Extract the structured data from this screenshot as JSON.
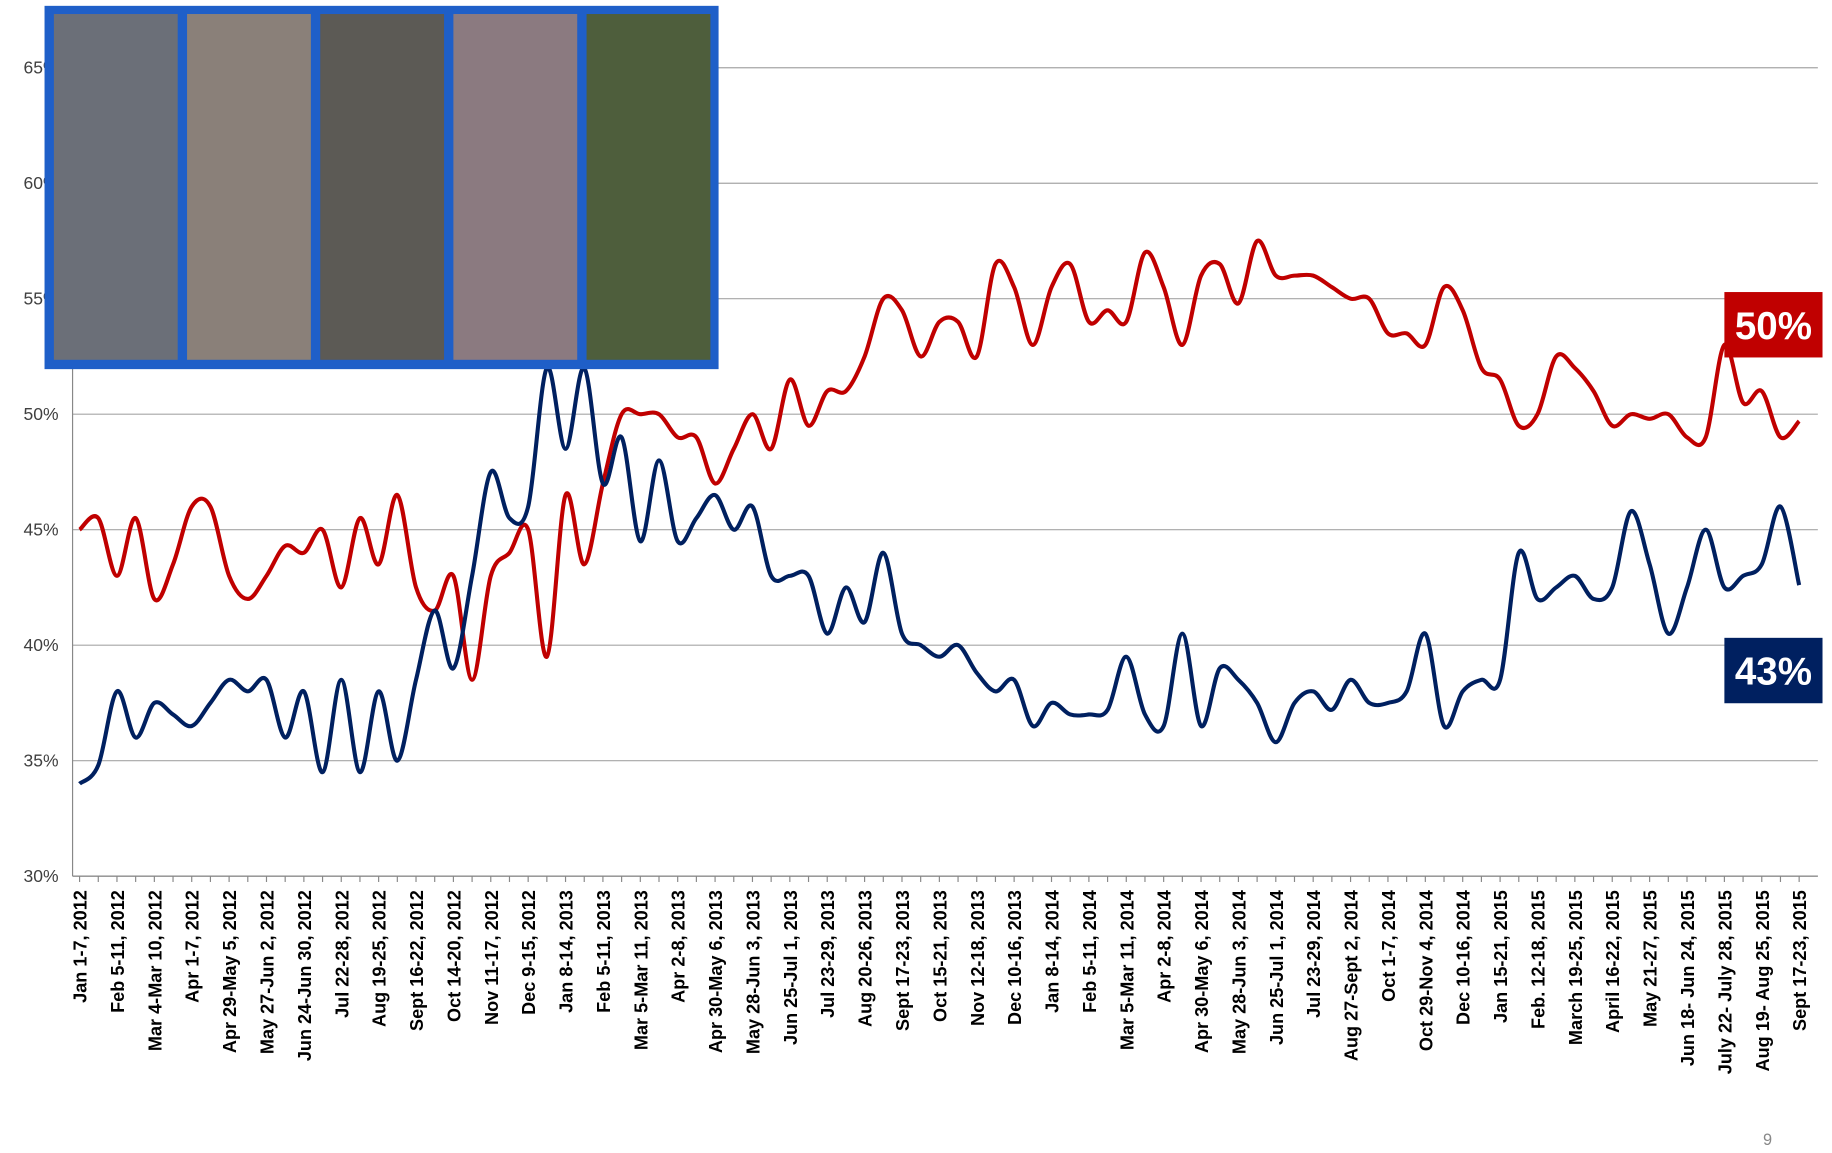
{
  "chart_data": {
    "type": "line",
    "categories": [
      "Jan 1-7, 2012",
      null,
      "Feb 5-11, 2012",
      null,
      "Mar 4-Mar 10, 2012",
      null,
      "Apr 1-7, 2012",
      null,
      "Apr 29-May 5, 2012",
      null,
      "May 27-Jun 2, 2012",
      null,
      "Jun 24-Jun 30, 2012",
      null,
      "Jul 22-28, 2012",
      null,
      "Aug 19-25, 2012",
      null,
      "Sept 16-22, 2012",
      null,
      "Oct 14-20, 2012",
      null,
      "Nov 11-17, 2012",
      null,
      "Dec 9-15, 2012",
      null,
      "Jan 8-14, 2013",
      null,
      "Feb 5-11, 2013",
      null,
      "Mar 5-Mar 11, 2013",
      null,
      "Apr 2-8, 2013",
      null,
      "Apr 30-May 6, 2013",
      null,
      "May 28-Jun 3, 2013",
      null,
      "Jun 25-Jul 1, 2013",
      null,
      "Jul 23-29, 2013",
      null,
      "Aug 20-26, 2013",
      null,
      "Sept 17-23, 2013",
      null,
      "Oct 15-21, 2013",
      null,
      "Nov 12-18, 2013",
      null,
      "Dec 10-16, 2013",
      null,
      "Jan 8-14, 2014",
      null,
      "Feb 5-11, 2014",
      null,
      "Mar 5-Mar 11, 2014",
      null,
      "Apr 2-8, 2014",
      null,
      "Apr 30-May 6, 2014",
      null,
      "May 28-Jun 3, 2014",
      null,
      "Jun 25-Jul 1, 2014",
      null,
      "Jul 23-29, 2014",
      null,
      "Aug 27-Sept 2, 2014",
      null,
      "Oct 1-7, 2014",
      null,
      "Oct 29-Nov 4, 2014",
      null,
      "Dec 10-16, 2014",
      null,
      "Jan 15-21, 2015",
      null,
      "Feb. 12-18, 2015",
      null,
      "March 19-25, 2015",
      null,
      "April 16-22, 2015",
      null,
      "May 21-27, 2015",
      null,
      "Jun 18- Jun 24, 2015",
      null,
      "July 22- July 28, 2015",
      null,
      "Aug 19- Aug 25, 2015",
      null,
      "Sept 17-23, 2015"
    ],
    "series": [
      {
        "color": "#c00000",
        "values": [
          45,
          45.5,
          43,
          45.5,
          42,
          43.5,
          46,
          46,
          43,
          42,
          43,
          44.3,
          44,
          45,
          42.5,
          45.5,
          43.5,
          46.5,
          42.5,
          41.5,
          43,
          38.5,
          43,
          44,
          45,
          39.5,
          46.5,
          43.5,
          47,
          50,
          50,
          50,
          49,
          49,
          47,
          48.5,
          50,
          48.5,
          51.5,
          49.5,
          51,
          51,
          52.5,
          55,
          54.5,
          52.5,
          54,
          54,
          52.5,
          56.5,
          55.5,
          53,
          55.5,
          56.5,
          54,
          54.5,
          54,
          57,
          55.5,
          53,
          56,
          56.5,
          54.8,
          57.5,
          56,
          56,
          56,
          55.5,
          55,
          55,
          53.5,
          53.5,
          53,
          55.5,
          54.5,
          52,
          51.5,
          49.5,
          50,
          52.5,
          52,
          51,
          49.5,
          50,
          49.8,
          50,
          49,
          49,
          53,
          50.5,
          51,
          49,
          49.7
        ]
      },
      {
        "color": "#002060",
        "values": [
          34,
          34.8,
          38,
          36,
          37.5,
          37,
          36.5,
          37.5,
          38.5,
          38,
          38.5,
          36,
          38,
          34.5,
          38.5,
          34.5,
          38,
          35,
          38.5,
          41.5,
          39,
          43,
          47.5,
          45.5,
          46,
          52,
          48.5,
          52,
          47,
          49,
          44.5,
          48,
          44.5,
          45.5,
          46.5,
          45,
          46,
          43,
          43,
          43,
          40.5,
          42.5,
          41,
          44,
          40.5,
          40,
          39.5,
          40,
          38.8,
          38,
          38.5,
          36.5,
          37.5,
          37,
          37,
          37.2,
          39.5,
          37,
          36.5,
          40.5,
          36.5,
          39,
          38.5,
          37.5,
          35.8,
          37.5,
          38,
          37.2,
          38.5,
          37.5,
          37.5,
          38,
          40.5,
          36.5,
          38,
          38.5,
          38.5,
          44,
          42,
          42.5,
          43,
          42,
          42.5,
          45.8,
          43.5,
          40.5,
          42.5,
          45,
          42.5,
          43,
          43.5,
          46,
          42.6
        ]
      }
    ],
    "ylim": [
      30,
      65
    ],
    "yticks": [
      {
        "value": 30,
        "label": "30%"
      },
      {
        "value": 35,
        "label": "35%"
      },
      {
        "value": 40,
        "label": "40%"
      },
      {
        "value": 45,
        "label": "45%"
      },
      {
        "value": 50,
        "label": "50%"
      },
      {
        "value": 55,
        "label": "55%"
      },
      {
        "value": 60,
        "label": "60%"
      },
      {
        "value": 65,
        "label": "65%"
      }
    ],
    "grid": true,
    "annotations": [
      {
        "text": "50%",
        "color": "#c00000"
      },
      {
        "text": "43%",
        "color": "#002060"
      }
    ],
    "page_number": "9"
  }
}
